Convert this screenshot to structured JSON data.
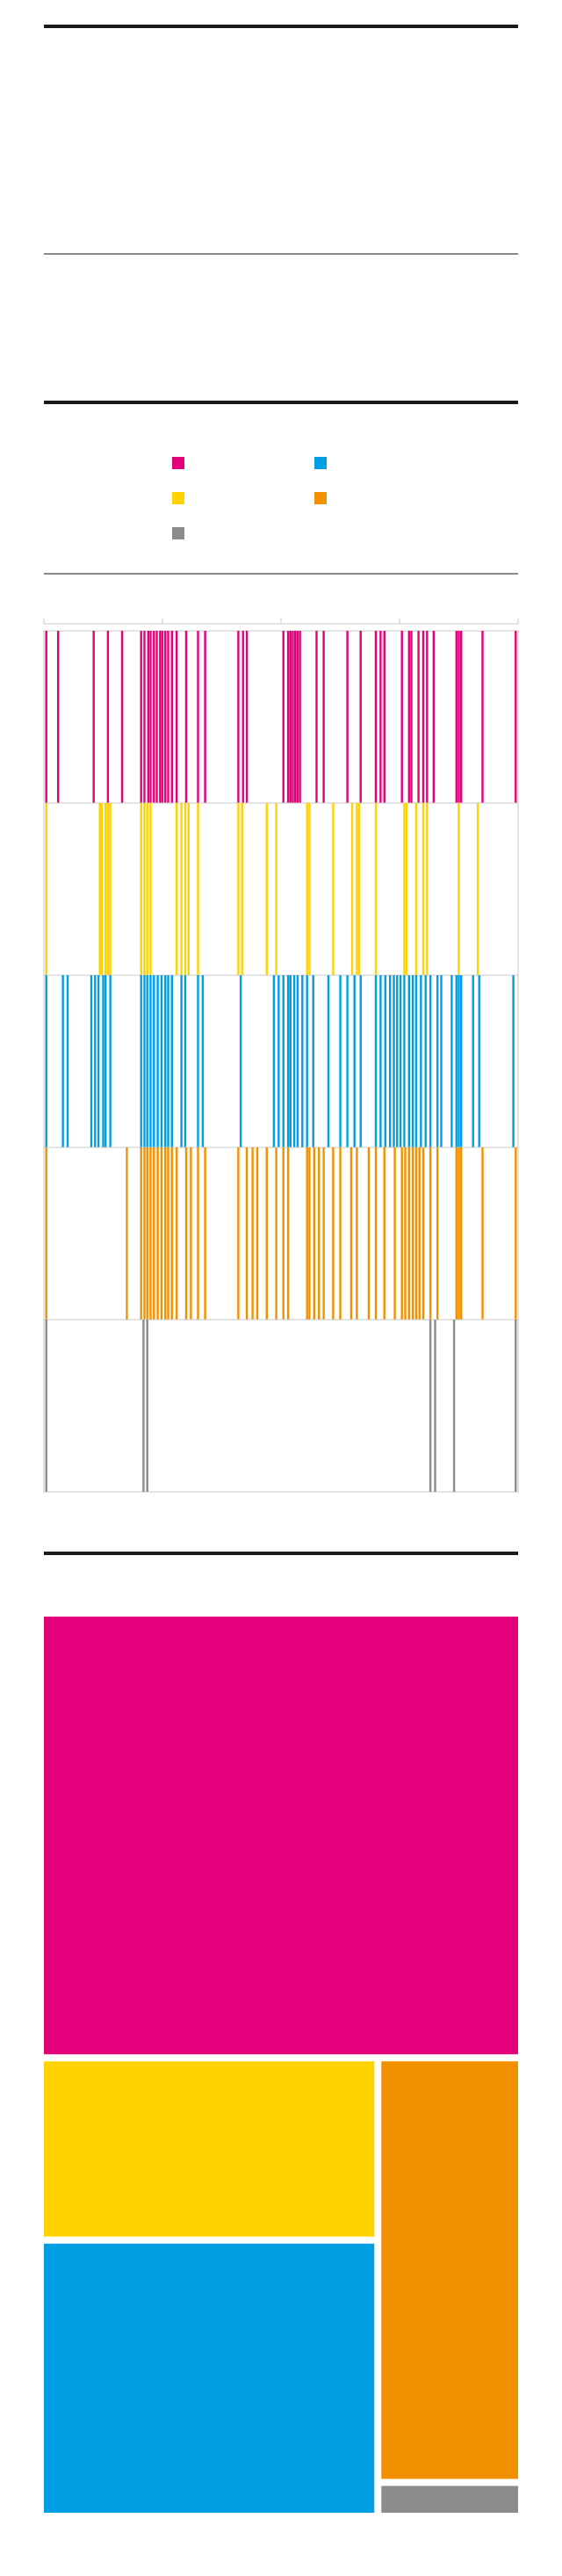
{
  "colors": {
    "magenta": "#e3007a",
    "yellow": "#ffd300",
    "cyan": "#009fe3",
    "orange": "#f29100",
    "gray": "#8c8c8c",
    "rule": "#1a1a1a",
    "frame": "#c8c8c8"
  },
  "legend": {
    "items": [
      {
        "icon": "magenta-swatch",
        "color": "#e3007a",
        "label": ""
      },
      {
        "icon": "cyan-swatch",
        "color": "#009fe3",
        "label": ""
      },
      {
        "icon": "yellow-swatch",
        "color": "#ffd300",
        "label": ""
      },
      {
        "icon": "orange-swatch",
        "color": "#f29100",
        "label": ""
      },
      {
        "icon": "gray-swatch",
        "color": "#8c8c8c",
        "label": ""
      }
    ]
  },
  "chart_data": [
    {
      "type": "strip",
      "title": "",
      "xlabel": "",
      "ylabel": "",
      "x_range": [
        0,
        1000
      ],
      "x_ticks": [
        0,
        250,
        500,
        750,
        1000
      ],
      "grid": false,
      "series": [
        {
          "color": "#e3007a",
          "x": [
            5,
            30,
            105,
            135,
            165,
            205,
            212,
            220,
            225,
            232,
            238,
            245,
            250,
            256,
            262,
            270,
            280,
            300,
            325,
            340,
            410,
            420,
            428,
            505,
            515,
            520,
            525,
            530,
            535,
            540,
            575,
            590,
            640,
            668,
            700,
            710,
            718,
            755,
            770,
            775,
            790,
            800,
            808,
            822,
            870,
            875,
            880,
            925,
            995
          ]
        },
        {
          "color": "#ffd300",
          "x": [
            5,
            118,
            122,
            130,
            135,
            140,
            205,
            212,
            218,
            225,
            280,
            290,
            298,
            305,
            325,
            410,
            418,
            470,
            490,
            555,
            560,
            610,
            650,
            660,
            665,
            700,
            760,
            765,
            785,
            800,
            808,
            875,
            915
          ]
        },
        {
          "color": "#009fe3",
          "x": [
            5,
            40,
            50,
            100,
            108,
            115,
            125,
            130,
            140,
            205,
            212,
            218,
            225,
            232,
            240,
            248,
            256,
            262,
            270,
            290,
            298,
            325,
            335,
            415,
            485,
            495,
            505,
            515,
            520,
            528,
            535,
            545,
            555,
            568,
            600,
            625,
            640,
            655,
            668,
            700,
            710,
            720,
            730,
            738,
            745,
            752,
            760,
            770,
            778,
            785,
            795,
            805,
            815,
            830,
            838,
            860,
            870,
            875,
            880,
            905,
            918,
            990
          ]
        },
        {
          "color": "#f29100",
          "x": [
            5,
            175,
            205,
            212,
            218,
            225,
            232,
            240,
            248,
            256,
            262,
            270,
            280,
            300,
            310,
            325,
            340,
            410,
            428,
            440,
            450,
            470,
            490,
            505,
            515,
            555,
            560,
            570,
            580,
            590,
            610,
            625,
            648,
            660,
            685,
            700,
            718,
            740,
            755,
            762,
            770,
            778,
            785,
            792,
            800,
            815,
            830,
            870,
            875,
            880,
            925,
            995
          ]
        },
        {
          "color": "#8c8c8c",
          "x": [
            5,
            210,
            218,
            815,
            825,
            865,
            995
          ]
        }
      ]
    },
    {
      "type": "treemap",
      "title": "",
      "values": [
        {
          "color": "#e3007a",
          "value": 48.6
        },
        {
          "color": "#ffd300",
          "value": 14.2
        },
        {
          "color": "#009fe3",
          "value": 21.8
        },
        {
          "color": "#f29100",
          "value": 14.0
        },
        {
          "color": "#8c8c8c",
          "value": 0.9
        }
      ]
    }
  ]
}
